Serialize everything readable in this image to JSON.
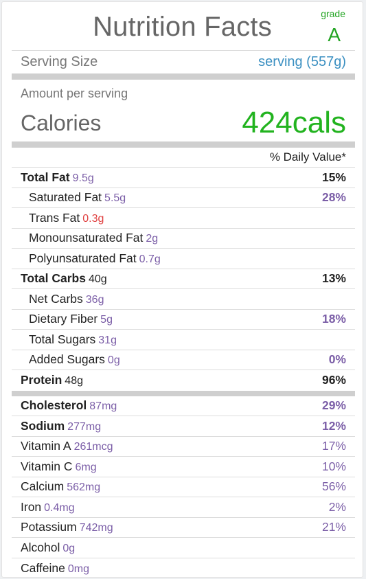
{
  "header": {
    "title": "Nutrition Facts",
    "grade_label": "grade",
    "grade_value": "A"
  },
  "serving": {
    "label": "Serving Size",
    "value": "serving (557g)"
  },
  "amount_per_serving": "Amount per serving",
  "calories": {
    "label": "Calories",
    "value": "424cals"
  },
  "daily_value_header": "% Daily Value*",
  "nutrients": [
    {
      "name": "Total Fat",
      "amount": "9.5g",
      "percent": "15%"
    },
    {
      "name": "Saturated Fat",
      "amount": "5.5g",
      "percent": "28%"
    },
    {
      "name": "Trans Fat",
      "amount": "0.3g",
      "percent": ""
    },
    {
      "name": "Monounsaturated Fat",
      "amount": "2g",
      "percent": ""
    },
    {
      "name": "Polyunsaturated Fat",
      "amount": "0.7g",
      "percent": ""
    },
    {
      "name": "Total Carbs",
      "amount": "40g",
      "percent": "13%"
    },
    {
      "name": "Net Carbs",
      "amount": "36g",
      "percent": ""
    },
    {
      "name": "Dietary Fiber",
      "amount": "5g",
      "percent": "18%"
    },
    {
      "name": "Total Sugars",
      "amount": "31g",
      "percent": ""
    },
    {
      "name": "Added Sugars",
      "amount": "0g",
      "percent": "0%"
    },
    {
      "name": "Protein",
      "amount": "48g",
      "percent": "96%"
    },
    {
      "name": "Cholesterol",
      "amount": "87mg",
      "percent": "29%"
    },
    {
      "name": "Sodium",
      "amount": "277mg",
      "percent": "12%"
    },
    {
      "name": "Vitamin A",
      "amount": "261mcg",
      "percent": "17%"
    },
    {
      "name": "Vitamin C",
      "amount": "6mg",
      "percent": "10%"
    },
    {
      "name": "Calcium",
      "amount": "562mg",
      "percent": "56%"
    },
    {
      "name": "Iron",
      "amount": "0.4mg",
      "percent": "2%"
    },
    {
      "name": "Potassium",
      "amount": "742mg",
      "percent": "21%"
    },
    {
      "name": "Alcohol",
      "amount": "0g",
      "percent": ""
    },
    {
      "name": "Caffeine",
      "amount": "0mg",
      "percent": ""
    }
  ],
  "colors": {
    "grade": "#22a422",
    "calories": "#22b31f",
    "serving_value": "#3a8fc1",
    "amount": "#7b5ea7",
    "trans_fat": "#e04040"
  }
}
